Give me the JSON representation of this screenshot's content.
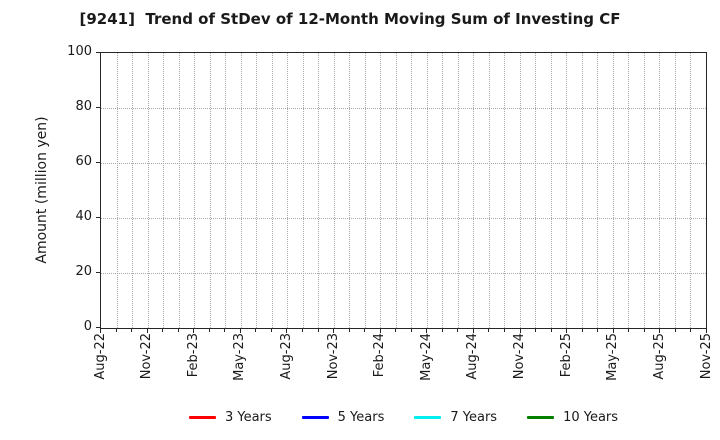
{
  "chart_data": {
    "type": "line",
    "title": "[9241]  Trend of StDev of 12-Month Moving Sum of Investing CF",
    "ylabel": "Amount (million yen)",
    "ylim": [
      0,
      100
    ],
    "yticks": [
      0,
      20,
      40,
      60,
      80,
      100
    ],
    "x_tick_labels": [
      "Aug-22",
      "Nov-22",
      "Feb-23",
      "May-23",
      "Aug-23",
      "Nov-23",
      "Feb-24",
      "May-24",
      "Aug-24",
      "Nov-24",
      "Feb-25",
      "May-25",
      "Aug-25",
      "Nov-25"
    ],
    "months_per_labeled_tick": 3,
    "total_month_intervals": 39,
    "grid": true,
    "legend_position": "bottom-center",
    "series": [
      {
        "name": "3 Years",
        "color": "#ff0000",
        "values": []
      },
      {
        "name": "5 Years",
        "color": "#0000ff",
        "values": []
      },
      {
        "name": "7 Years",
        "color": "#00eeee",
        "values": []
      },
      {
        "name": "10 Years",
        "color": "#008000",
        "values": []
      }
    ],
    "plot_background": "#ffffff",
    "grid_color": "#a8a8a8",
    "axis_color": "#262626",
    "text_color": "#1a1a1a"
  }
}
